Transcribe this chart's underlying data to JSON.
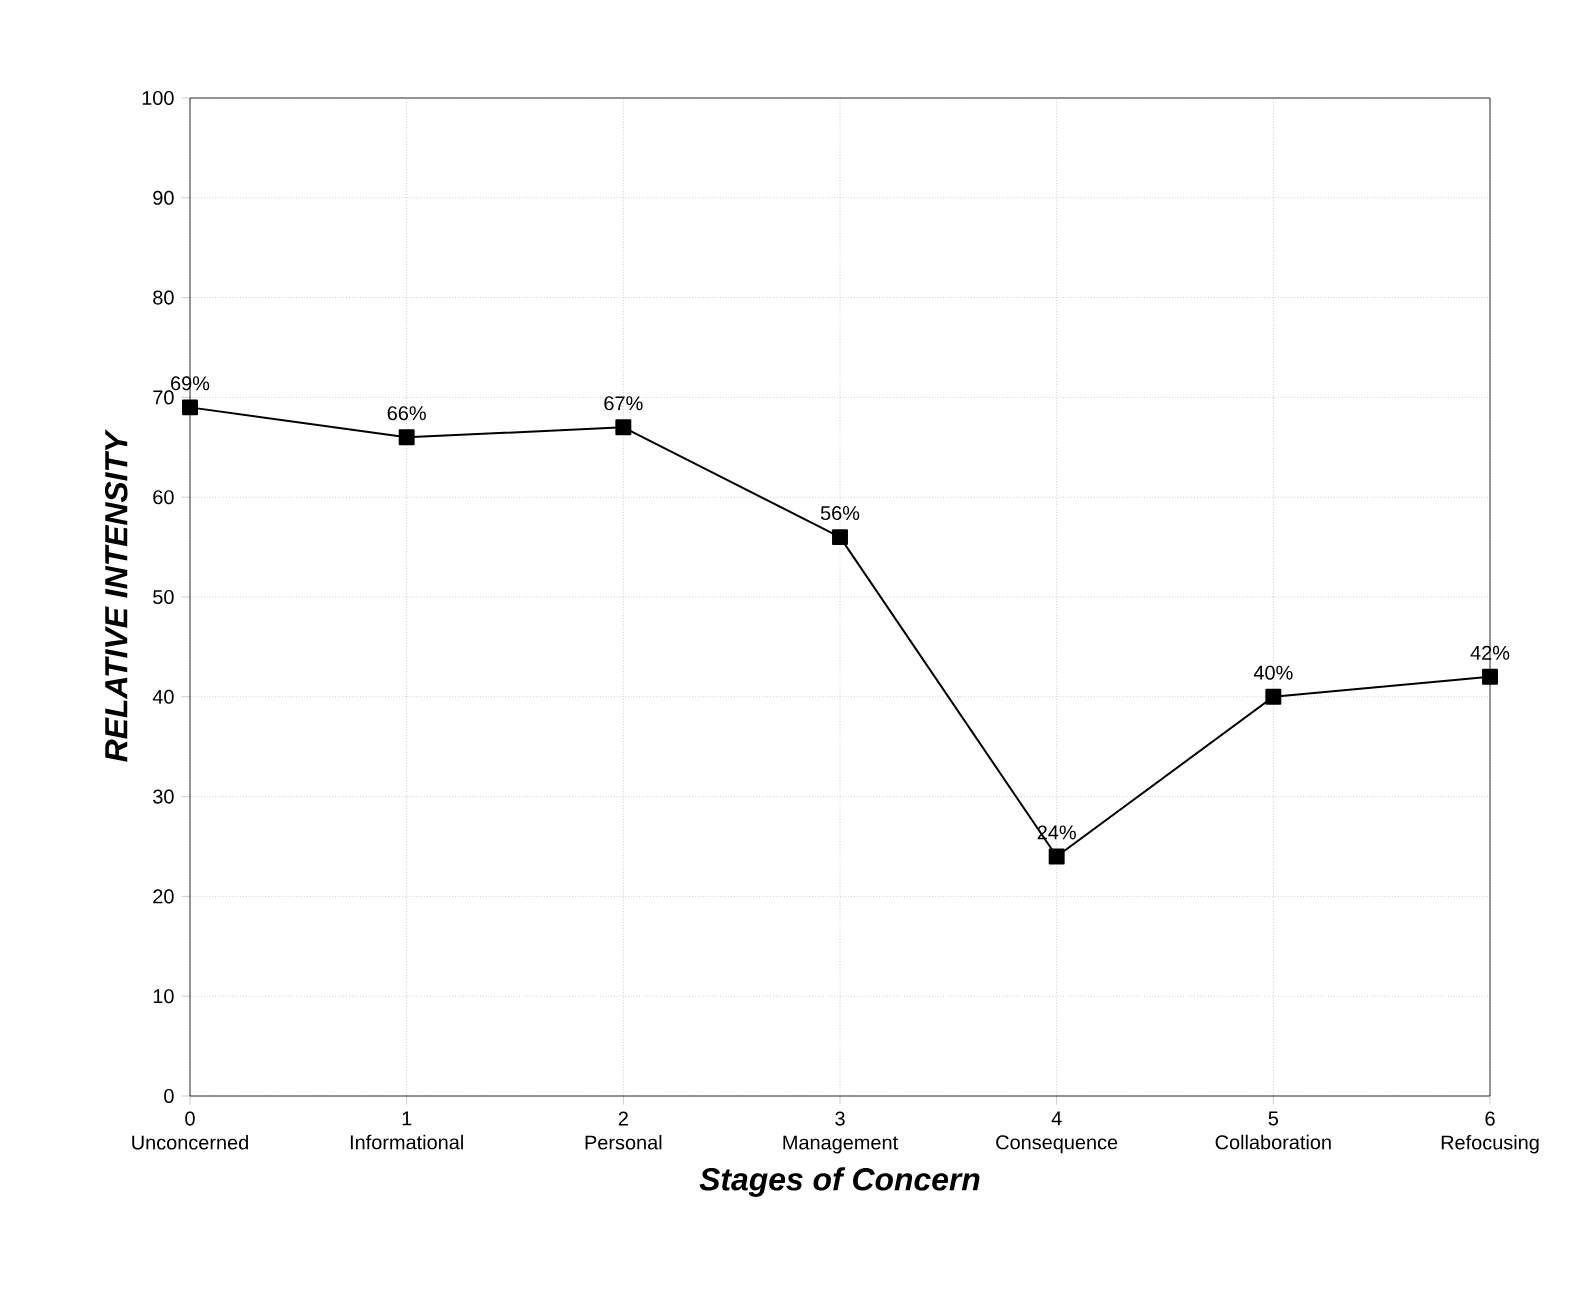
{
  "chart_data": {
    "type": "line",
    "xlabel": "Stages of Concern",
    "ylabel": "RELATIVE INTENSITY",
    "categories": [
      "0 Unconcerned",
      "1 Informational",
      "2 Personal",
      "3 Management",
      "4 Consequence",
      "5 Collaboration",
      "6 Refocusing"
    ],
    "values": [
      69,
      66,
      67,
      56,
      24,
      40,
      42
    ],
    "value_labels": [
      "69%",
      "66%",
      "67%",
      "56%",
      "24%",
      "40%",
      "42%"
    ],
    "color": "#000000",
    "marker": "square",
    "line_style": "solid",
    "grid": true,
    "ylim": [
      0,
      100
    ],
    "yticks": [
      0,
      10,
      20,
      30,
      40,
      50,
      60,
      70,
      80,
      90,
      100
    ]
  }
}
